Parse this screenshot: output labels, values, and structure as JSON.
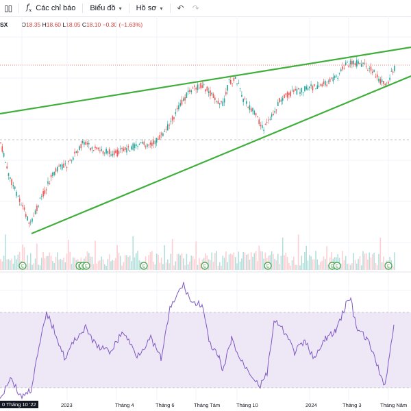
{
  "toolbar": {
    "compare_icon": "candles-icon",
    "indicators_label": "Các chỉ báo",
    "fx_icon": "function-icon",
    "layout_label": "Biểu đồ",
    "profile_label": "Hồ sơ",
    "undo_icon": "undo-icon",
    "redo_icon": "redo-icon"
  },
  "legend": {
    "symbol_fragment": "SX",
    "o_label": "O",
    "o_value": "18.35",
    "h_label": "H",
    "h_value": "18.60",
    "l_label": "L",
    "l_value": "18.05",
    "c_label": "C",
    "c_value": "18.10",
    "change": "−0.30 (−1.63%)"
  },
  "colors": {
    "up": "#26a69a",
    "down": "#ef5350",
    "trend": "#3fae3a",
    "rsi": "#7e57c2",
    "rsi_band": "#ede7f6",
    "grid": "#f0f3fa"
  },
  "x_axis": {
    "first_label": "0 Tháng 10 '22",
    "labels": [
      "2023",
      "Tháng 4",
      "Tháng 6",
      "Tháng Tám",
      "Tháng 10",
      "2024",
      "Tháng 3",
      "Tháng Năm"
    ]
  },
  "event_markers": [
    {
      "label": "E"
    },
    {
      "label": "E"
    },
    {
      "label": "E"
    },
    {
      "label": "E"
    },
    {
      "label": "E"
    },
    {
      "label": "E"
    },
    {
      "label": "E"
    },
    {
      "label": "E"
    },
    {
      "label": "E"
    },
    {
      "label": "E"
    }
  ]
}
